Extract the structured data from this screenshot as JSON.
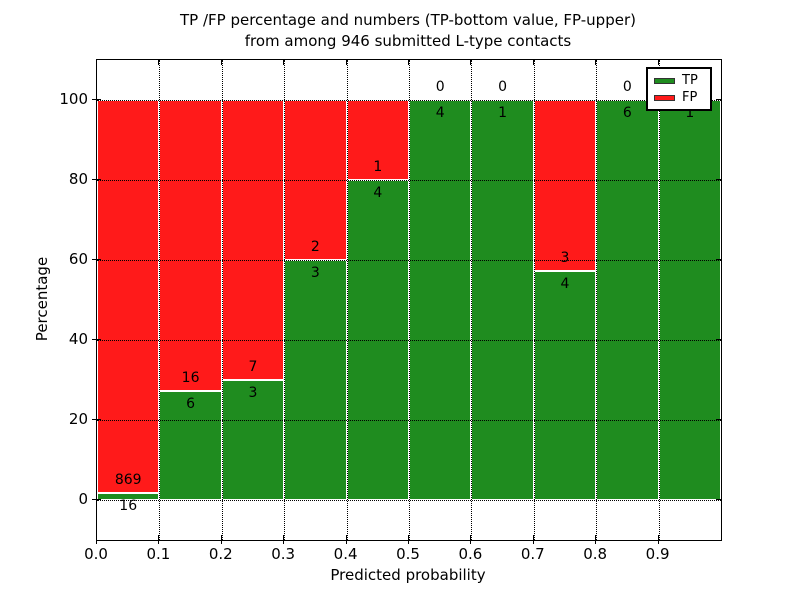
{
  "chart_data": {
    "type": "bar",
    "stacked": true,
    "orientation": "vertical",
    "title_line1": "TP /FP percentage and numbers (TP-bottom value, FP-upper)",
    "title_line2": "from among 946 submitted L-type contacts",
    "xlabel": "Predicted probability",
    "ylabel": "Percentage",
    "xlim": [
      0,
      1
    ],
    "ylim": [
      -10,
      110
    ],
    "x_tick_values": [
      0.0,
      0.1,
      0.2,
      0.3,
      0.4,
      0.5,
      0.6,
      0.7,
      0.8,
      0.9
    ],
    "x_tick_labels": [
      "0.0",
      "0.1",
      "0.2",
      "0.3",
      "0.4",
      "0.5",
      "0.6",
      "0.7",
      "0.8",
      "0.9"
    ],
    "y_tick_values": [
      0,
      20,
      40,
      60,
      80,
      100
    ],
    "y_tick_labels": [
      "0",
      "20",
      "40",
      "60",
      "80",
      "100"
    ],
    "grid_style": "dotted",
    "total_submitted_contacts": 946,
    "legend": {
      "position": "upper-right",
      "items": [
        {
          "label": "TP",
          "color": "#1f8c1f"
        },
        {
          "label": "FP",
          "color": "#ff1a1a"
        }
      ]
    },
    "colors": {
      "tp": "#1f8c1f",
      "fp": "#ff1a1a",
      "bar_edge": "#ffffff",
      "grid": "#000000",
      "text": "#000000",
      "background": "#ffffff"
    },
    "bins": [
      {
        "x_start": 0.0,
        "x_end": 0.1,
        "tp_count": 16,
        "fp_count": 869,
        "tp_pct": 1.81
      },
      {
        "x_start": 0.1,
        "x_end": 0.2,
        "tp_count": 6,
        "fp_count": 16,
        "tp_pct": 27.27
      },
      {
        "x_start": 0.2,
        "x_end": 0.3,
        "tp_count": 3,
        "fp_count": 7,
        "tp_pct": 30.0
      },
      {
        "x_start": 0.3,
        "x_end": 0.4,
        "tp_count": 3,
        "fp_count": 2,
        "tp_pct": 60.0
      },
      {
        "x_start": 0.4,
        "x_end": 0.5,
        "tp_count": 4,
        "fp_count": 1,
        "tp_pct": 80.0
      },
      {
        "x_start": 0.5,
        "x_end": 0.6,
        "tp_count": 4,
        "fp_count": 0,
        "tp_pct": 100.0
      },
      {
        "x_start": 0.6,
        "x_end": 0.7,
        "tp_count": 1,
        "fp_count": 0,
        "tp_pct": 100.0
      },
      {
        "x_start": 0.7,
        "x_end": 0.8,
        "tp_count": 4,
        "fp_count": 3,
        "tp_pct": 57.14
      },
      {
        "x_start": 0.8,
        "x_end": 0.9,
        "tp_count": 6,
        "fp_count": 0,
        "tp_pct": 100.0
      },
      {
        "x_start": 0.9,
        "x_end": 1.0,
        "tp_count": 1,
        "fp_count": 0,
        "tp_pct": 100.0
      }
    ]
  }
}
